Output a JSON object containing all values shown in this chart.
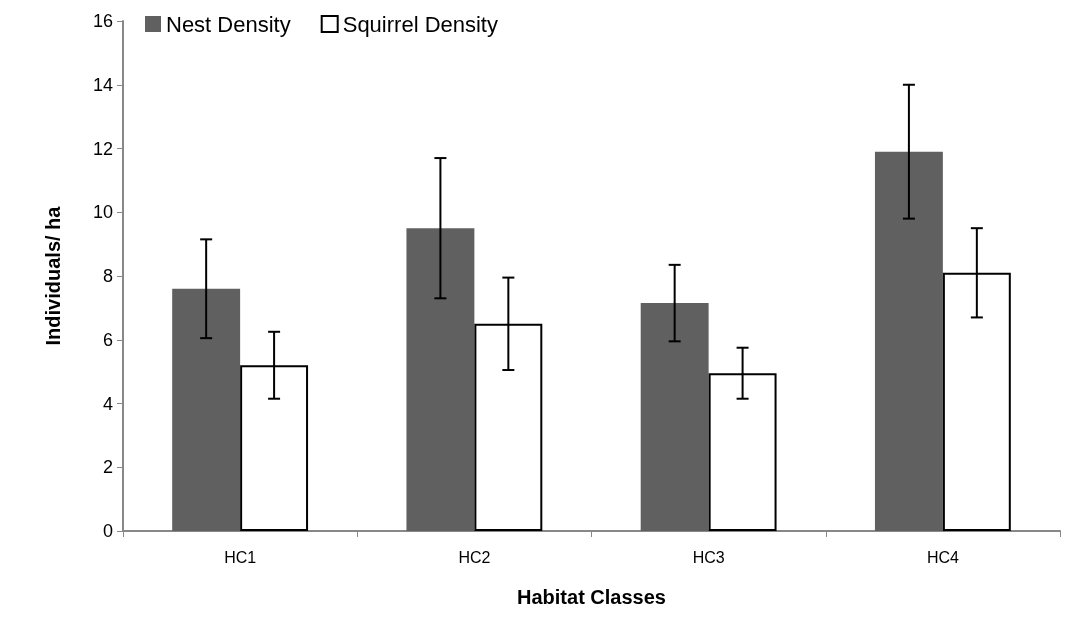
{
  "chart_data": {
    "type": "bar",
    "xlabel": "Habitat Classes",
    "ylabel": "Individuals/ ha",
    "categories": [
      "HC1",
      "HC2",
      "HC3",
      "HC4"
    ],
    "series": [
      {
        "name": "Nest Density",
        "color": "#606060",
        "values": [
          7.6,
          9.5,
          7.15,
          11.9
        ],
        "errors": [
          1.55,
          2.2,
          1.2,
          2.1
        ]
      },
      {
        "name": "Squirrel Density",
        "color": "#ffffff",
        "values": [
          5.2,
          6.5,
          4.95,
          8.1
        ],
        "errors": [
          1.05,
          1.45,
          0.8,
          1.4
        ]
      }
    ],
    "ylim": [
      0,
      16
    ],
    "yticks": [
      0,
      2,
      4,
      6,
      8,
      10,
      12,
      14,
      16
    ],
    "grid": false,
    "legend": "top left"
  }
}
